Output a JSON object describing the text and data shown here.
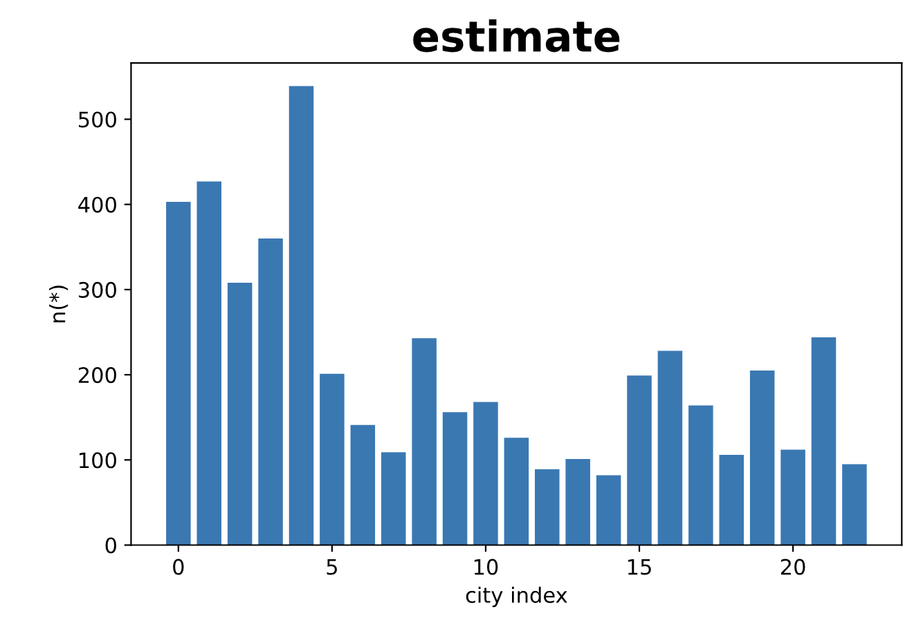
{
  "chart_data": {
    "type": "bar",
    "title": "estimate",
    "xlabel": "city index",
    "ylabel": "n(*)",
    "x": [
      0,
      1,
      2,
      3,
      4,
      5,
      6,
      7,
      8,
      9,
      10,
      11,
      12,
      13,
      14,
      15,
      16,
      17,
      18,
      19,
      20,
      21,
      22
    ],
    "values": [
      403,
      427,
      308,
      360,
      539,
      201,
      141,
      109,
      243,
      156,
      168,
      126,
      89,
      101,
      82,
      199,
      228,
      164,
      106,
      205,
      112,
      244,
      95
    ],
    "color": "#3a78b2",
    "xlim": [
      -1.54,
      23.54
    ],
    "xticks": [
      0,
      5,
      10,
      15,
      20
    ],
    "ylim": [
      0,
      566
    ],
    "yticks": [
      0,
      100,
      200,
      300,
      400,
      500
    ],
    "grid": false
  }
}
